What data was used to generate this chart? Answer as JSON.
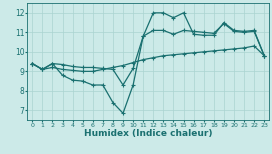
{
  "xlabel": "Humidex (Indice chaleur)",
  "bg_color": "#cceae8",
  "line_color": "#1a7070",
  "grid_color": "#aad4d0",
  "xlim": [
    -0.5,
    23.5
  ],
  "ylim": [
    6.5,
    12.5
  ],
  "xticks": [
    0,
    1,
    2,
    3,
    4,
    5,
    6,
    7,
    8,
    9,
    10,
    11,
    12,
    13,
    14,
    15,
    16,
    17,
    18,
    19,
    20,
    21,
    22,
    23
  ],
  "yticks": [
    7,
    8,
    9,
    10,
    11,
    12
  ],
  "line1_x": [
    0,
    1,
    2,
    3,
    4,
    5,
    6,
    7,
    8,
    9,
    10,
    11,
    12,
    13,
    14,
    15,
    16,
    17,
    18,
    19,
    20,
    21,
    22,
    23
  ],
  "line1_y": [
    9.4,
    9.1,
    9.4,
    8.8,
    8.55,
    8.5,
    8.3,
    8.3,
    7.4,
    6.85,
    8.3,
    10.8,
    12.0,
    12.0,
    11.75,
    12.0,
    10.9,
    10.85,
    10.85,
    11.5,
    11.1,
    11.05,
    11.1,
    9.8
  ],
  "line2_x": [
    0,
    1,
    2,
    3,
    4,
    5,
    6,
    7,
    8,
    9,
    10,
    11,
    12,
    13,
    14,
    15,
    16,
    17,
    18,
    19,
    20,
    21,
    22,
    23
  ],
  "line2_y": [
    9.4,
    9.1,
    9.4,
    9.35,
    9.25,
    9.2,
    9.2,
    9.15,
    9.1,
    8.3,
    9.15,
    10.8,
    11.1,
    11.1,
    10.9,
    11.1,
    11.05,
    11.0,
    10.95,
    11.45,
    11.05,
    11.0,
    11.05,
    9.8
  ],
  "line3_x": [
    0,
    1,
    2,
    3,
    4,
    5,
    6,
    7,
    8,
    9,
    10,
    11,
    12,
    13,
    14,
    15,
    16,
    17,
    18,
    19,
    20,
    21,
    22,
    23
  ],
  "line3_y": [
    9.4,
    9.1,
    9.2,
    9.1,
    9.05,
    9.0,
    9.0,
    9.1,
    9.2,
    9.3,
    9.45,
    9.6,
    9.7,
    9.8,
    9.85,
    9.9,
    9.95,
    10.0,
    10.05,
    10.1,
    10.15,
    10.2,
    10.3,
    9.8
  ],
  "marker_size": 2.5,
  "linewidth": 0.9
}
